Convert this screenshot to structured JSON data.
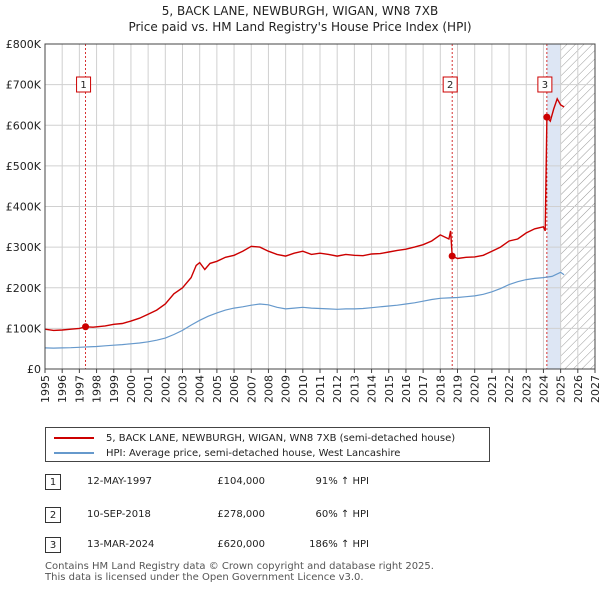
{
  "header": {
    "line1": "5, BACK LANE, NEWBURGH, WIGAN, WN8 7XB",
    "line2": "Price paid vs. HM Land Registry's House Price Index (HPI)"
  },
  "legend": {
    "property_label": "5, BACK LANE, NEWBURGH, WIGAN, WN8 7XB (semi-detached house)",
    "hpi_label": "HPI: Average price, semi-detached house, West Lancashire"
  },
  "sales": [
    {
      "num": "1",
      "date": "12-MAY-1997",
      "price": "£104,000",
      "pct": "91% ↑ HPI"
    },
    {
      "num": "2",
      "date": "10-SEP-2018",
      "price": "£278,000",
      "pct": "60% ↑ HPI"
    },
    {
      "num": "3",
      "date": "13-MAR-2024",
      "price": "£620,000",
      "pct": "186% ↑ HPI"
    }
  ],
  "footer": {
    "line1": "Contains HM Land Registry data © Crown copyright and database right 2025.",
    "line2": "This data is licensed under the Open Government Licence v3.0."
  },
  "colors": {
    "property": "#cc0000",
    "hpi": "#6699cc",
    "highlight": "#dde6f4",
    "grid": "#d0d0d0"
  },
  "chart_data": {
    "type": "line",
    "xlim": [
      1995,
      2027
    ],
    "ylim": [
      0,
      800000
    ],
    "y_ticks": [
      {
        "value": 0,
        "label": "£0"
      },
      {
        "value": 100000,
        "label": "£100K"
      },
      {
        "value": 200000,
        "label": "£200K"
      },
      {
        "value": 300000,
        "label": "£300K"
      },
      {
        "value": 400000,
        "label": "£400K"
      },
      {
        "value": 500000,
        "label": "£500K"
      },
      {
        "value": 600000,
        "label": "£600K"
      },
      {
        "value": 700000,
        "label": "£700K"
      },
      {
        "value": 800000,
        "label": "£800K"
      }
    ],
    "x_ticks": [
      "1995",
      "1996",
      "1997",
      "1998",
      "1999",
      "2000",
      "2001",
      "2002",
      "2003",
      "2004",
      "2005",
      "2006",
      "2007",
      "2008",
      "2009",
      "2010",
      "2011",
      "2012",
      "2013",
      "2014",
      "2015",
      "2016",
      "2017",
      "2018",
      "2019",
      "2020",
      "2021",
      "2022",
      "2023",
      "2024",
      "2025",
      "2026",
      "2027"
    ],
    "highlight_start": 2024.2,
    "hatch_start": 2025.0,
    "sale_markers": [
      {
        "label": "1",
        "x": 1997.36,
        "y": 104000
      },
      {
        "label": "2",
        "x": 2018.69,
        "y": 278000
      },
      {
        "label": "3",
        "x": 2024.2,
        "y": 620000
      }
    ],
    "series": [
      {
        "name": "5, BACK LANE, NEWBURGH, WIGAN, WN8 7XB (semi-detached house)",
        "x": [
          1995.0,
          1995.5,
          1996.0,
          1996.5,
          1997.0,
          1997.36,
          1997.8,
          1998.5,
          1999.0,
          1999.5,
          2000.0,
          2000.5,
          2001.0,
          2001.5,
          2002.0,
          2002.5,
          2003.0,
          2003.5,
          2003.8,
          2004.0,
          2004.3,
          2004.6,
          2005.0,
          2005.5,
          2006.0,
          2006.5,
          2007.0,
          2007.5,
          2008.0,
          2008.5,
          2009.0,
          2009.5,
          2010.0,
          2010.5,
          2011.0,
          2011.5,
          2012.0,
          2012.5,
          2013.0,
          2013.5,
          2014.0,
          2014.5,
          2015.0,
          2015.5,
          2016.0,
          2016.5,
          2017.0,
          2017.5,
          2018.0,
          2018.5,
          2018.6,
          2018.69,
          2019.0,
          2019.5,
          2020.0,
          2020.5,
          2021.0,
          2021.5,
          2022.0,
          2022.5,
          2023.0,
          2023.5,
          2024.0,
          2024.1,
          2024.2,
          2024.4,
          2024.6,
          2024.8,
          2025.0,
          2025.2
        ],
        "y": [
          98000,
          95000,
          96000,
          98000,
          100000,
          104000,
          103000,
          106000,
          110000,
          112000,
          118000,
          125000,
          135000,
          145000,
          160000,
          185000,
          200000,
          225000,
          255000,
          262000,
          245000,
          260000,
          265000,
          275000,
          280000,
          290000,
          302000,
          300000,
          290000,
          282000,
          278000,
          285000,
          290000,
          282000,
          285000,
          282000,
          278000,
          282000,
          280000,
          279000,
          283000,
          284000,
          288000,
          292000,
          295000,
          300000,
          306000,
          315000,
          330000,
          320000,
          340000,
          278000,
          272000,
          275000,
          276000,
          280000,
          290000,
          300000,
          315000,
          320000,
          335000,
          345000,
          350000,
          340000,
          620000,
          610000,
          640000,
          665000,
          650000,
          645000
        ]
      },
      {
        "name": "HPI: Average price, semi-detached house, West Lancashire",
        "x": [
          1995.0,
          1995.5,
          1996.0,
          1996.5,
          1997.0,
          1997.5,
          1998.0,
          1998.5,
          1999.0,
          1999.5,
          2000.0,
          2000.5,
          2001.0,
          2001.5,
          2002.0,
          2002.5,
          2003.0,
          2003.5,
          2004.0,
          2004.5,
          2005.0,
          2005.5,
          2006.0,
          2006.5,
          2007.0,
          2007.5,
          2008.0,
          2008.5,
          2009.0,
          2009.5,
          2010.0,
          2010.5,
          2011.0,
          2011.5,
          2012.0,
          2012.5,
          2013.0,
          2013.5,
          2014.0,
          2014.5,
          2015.0,
          2015.5,
          2016.0,
          2016.5,
          2017.0,
          2017.5,
          2018.0,
          2018.5,
          2019.0,
          2019.5,
          2020.0,
          2020.5,
          2021.0,
          2021.5,
          2022.0,
          2022.5,
          2023.0,
          2023.5,
          2024.0,
          2024.5,
          2025.0,
          2025.2
        ],
        "y": [
          52000,
          51500,
          52000,
          52500,
          53500,
          54500,
          55500,
          57000,
          58500,
          60000,
          62000,
          64000,
          67000,
          71000,
          76000,
          85000,
          95000,
          108000,
          120000,
          130000,
          138000,
          145000,
          150000,
          153000,
          157000,
          160000,
          158000,
          152000,
          148000,
          150000,
          152000,
          150000,
          149000,
          148000,
          147000,
          148000,
          148000,
          149000,
          151000,
          153000,
          155000,
          157000,
          160000,
          163000,
          167000,
          171000,
          174000,
          175000,
          176000,
          178000,
          180000,
          184000,
          190000,
          198000,
          208000,
          215000,
          220000,
          223000,
          225000,
          228000,
          238000,
          232000
        ]
      }
    ]
  }
}
